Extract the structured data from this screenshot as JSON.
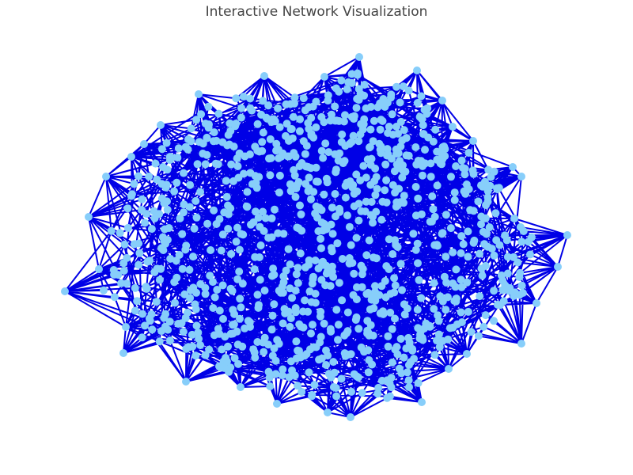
{
  "title": "Interactive Network Visualization",
  "colors": {
    "edge": "#0000e6",
    "node": "#87cefa",
    "background": "#ffffff",
    "title": "#444444"
  },
  "chart_data": {
    "type": "scatter",
    "title": "Interactive Network Visualization",
    "axes": "hidden",
    "grid": false,
    "legend": "none",
    "node_count_approx": 1000,
    "density": "very dense",
    "hull_points": [
      [
        454,
        72
      ],
      [
        527,
        89
      ],
      [
        559,
        127
      ],
      [
        572,
        160
      ],
      [
        598,
        178
      ],
      [
        648,
        211
      ],
      [
        659,
        223
      ],
      [
        650,
        276
      ],
      [
        717,
        297
      ],
      [
        705,
        337
      ],
      [
        678,
        383
      ],
      [
        659,
        434
      ],
      [
        590,
        447
      ],
      [
        567,
        466
      ],
      [
        533,
        508
      ],
      [
        443,
        527
      ],
      [
        414,
        521
      ],
      [
        350,
        510
      ],
      [
        304,
        489
      ],
      [
        235,
        482
      ],
      [
        156,
        446
      ],
      [
        159,
        413
      ],
      [
        82,
        368
      ],
      [
        125,
        340
      ],
      [
        112,
        274
      ],
      [
        134,
        223
      ],
      [
        166,
        198
      ],
      [
        182,
        182
      ],
      [
        203,
        158
      ],
      [
        251,
        119
      ],
      [
        334,
        96
      ],
      [
        410,
        97
      ]
    ]
  }
}
